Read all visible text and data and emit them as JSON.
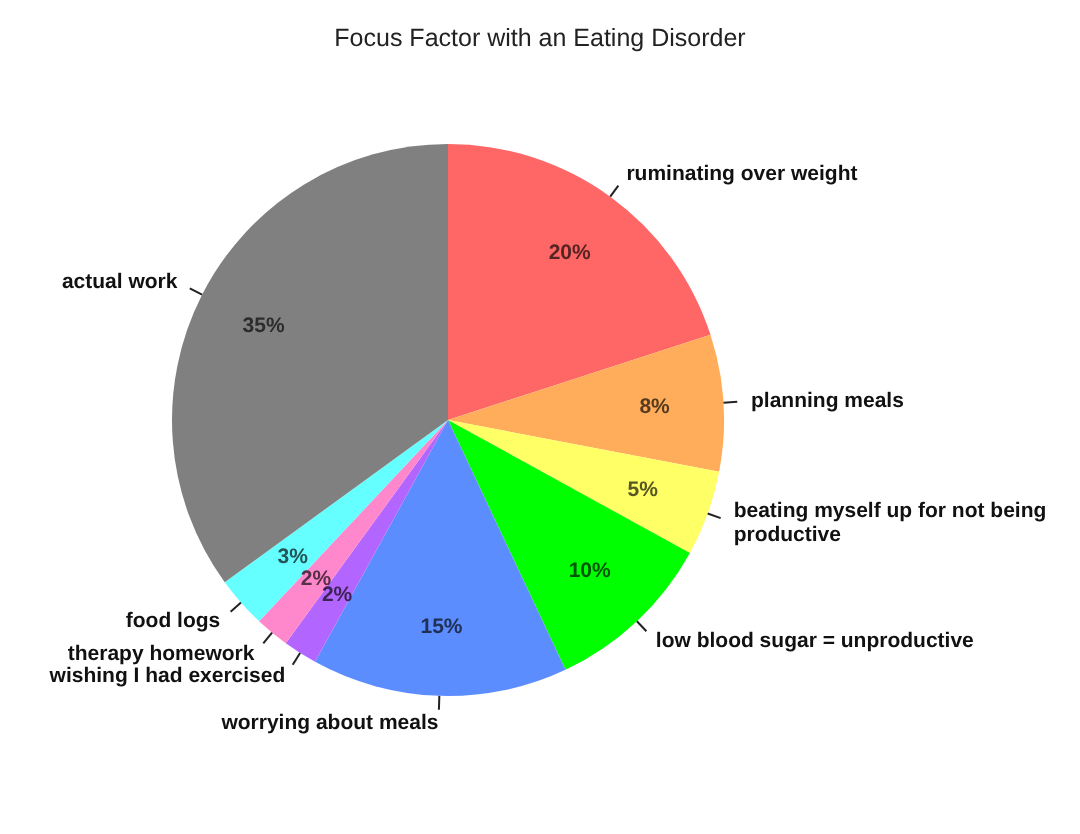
{
  "chart_data": {
    "type": "pie",
    "title": "Focus Factor with an Eating Disorder",
    "categories": [
      "ruminating over weight",
      "planning meals",
      "beating myself up for not being productive",
      "low blood sugar = unproductive",
      "worrying about meals",
      "wishing I had exercised",
      "therapy homework",
      "food logs",
      "actual work"
    ],
    "values": [
      20,
      8,
      5,
      10,
      15,
      2,
      2,
      3,
      35
    ],
    "colors": [
      "#ff6666",
      "#ffad5a",
      "#ffff66",
      "#00ff00",
      "#5c8dff",
      "#b266ff",
      "#ff88cc",
      "#66ffff",
      "#808080"
    ],
    "value_labels": [
      "20%",
      "8%",
      "5%",
      "10%",
      "15%",
      "2%",
      "2%",
      "3%",
      "35%"
    ]
  }
}
